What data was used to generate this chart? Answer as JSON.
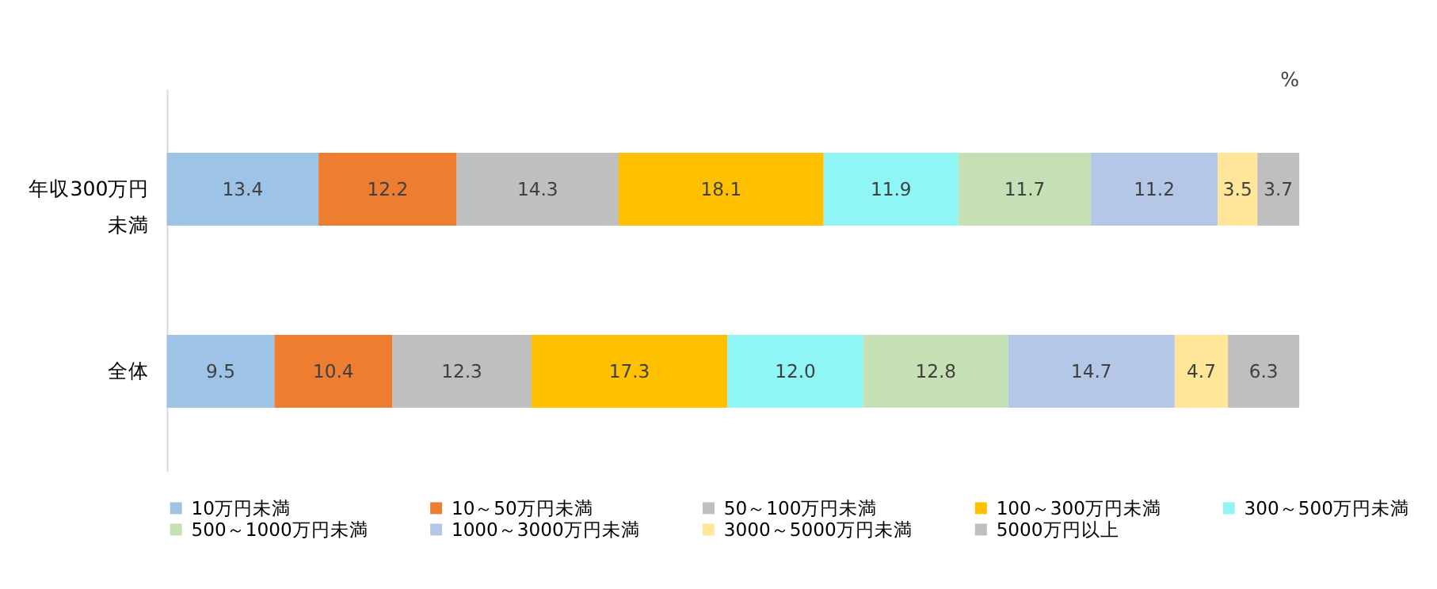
{
  "chart_data": {
    "type": "bar",
    "orientation": "horizontal",
    "stacked": true,
    "legend": "bottom",
    "tick_labels": "y",
    "xlim": [
      0,
      100
    ],
    "categories": [
      "年収300万円未満",
      "全体"
    ],
    "annotations": [
      "%"
    ],
    "series": [
      {
        "name": "10万円未満",
        "color": "#9dc3e6",
        "values": [
          13.4,
          9.5
        ],
        "value_labels": [
          "13.4",
          "9.5"
        ]
      },
      {
        "name": "10～50万円未満",
        "color": "#ed7d31",
        "values": [
          12.2,
          10.4
        ],
        "value_labels": [
          "12.2",
          "10.4"
        ]
      },
      {
        "name": "50～100万円未満",
        "color": "#bfbfbf",
        "values": [
          14.3,
          12.3
        ],
        "value_labels": [
          "14.3",
          "12.3"
        ]
      },
      {
        "name": "100～300万円未満",
        "color": "#ffc000",
        "values": [
          18.1,
          17.3
        ],
        "value_labels": [
          "18.1",
          "17.3"
        ]
      },
      {
        "name": "300～500万円未満",
        "color": "#8ff5f5",
        "values": [
          11.9,
          12.0
        ],
        "value_labels": [
          "11.9",
          "12.0"
        ]
      },
      {
        "name": "500～1000万円未満",
        "color": "#c5e0b4",
        "values": [
          11.7,
          12.8
        ],
        "value_labels": [
          "11.7",
          "12.8"
        ]
      },
      {
        "name": "1000～3000万円未満",
        "color": "#b4c7e7",
        "values": [
          11.2,
          14.7
        ],
        "value_labels": [
          "11.2",
          "14.7"
        ]
      },
      {
        "name": "3000～5000万円未満",
        "color": "#ffe699",
        "values": [
          3.5,
          4.7
        ],
        "value_labels": [
          "3.5",
          "4.7"
        ]
      },
      {
        "name": "5000万円以上",
        "color": "#bfbfbf",
        "values": [
          3.7,
          6.3
        ],
        "value_labels": [
          "3.7",
          "6.3"
        ]
      }
    ]
  }
}
